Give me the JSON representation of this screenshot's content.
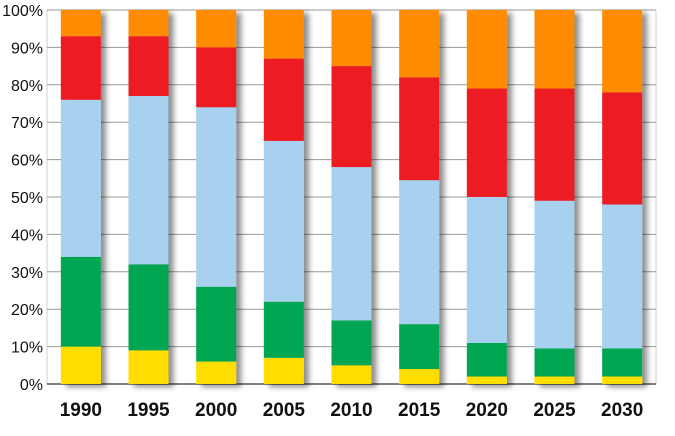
{
  "chart_data": {
    "type": "bar",
    "stacked": true,
    "categories": [
      "1990",
      "1995",
      "2000",
      "2005",
      "2010",
      "2015",
      "2020",
      "2025",
      "2030"
    ],
    "yticks": [
      "0%",
      "10%",
      "20%",
      "30%",
      "40%",
      "50%",
      "60%",
      "70%",
      "80%",
      "90%",
      "100%"
    ],
    "ylim": [
      0,
      100
    ],
    "grid": true,
    "legend": "none",
    "series": [
      {
        "color": "#FFDD00",
        "values": [
          10,
          9,
          6,
          7,
          5,
          4,
          2,
          2,
          2
        ]
      },
      {
        "color": "#00A651",
        "values": [
          24,
          23,
          20,
          15,
          12,
          12,
          9,
          7.5,
          7.5
        ]
      },
      {
        "color": "#A7D1EE",
        "values": [
          42,
          45,
          48,
          43,
          41,
          38.5,
          39,
          39.5,
          38.5
        ]
      },
      {
        "color": "#EC1C24",
        "values": [
          17,
          16,
          16,
          22,
          27,
          27.5,
          29,
          30,
          30
        ]
      },
      {
        "color": "#FF8C00",
        "values": [
          7,
          7,
          10,
          13,
          15,
          18,
          21,
          21,
          22
        ]
      }
    ]
  }
}
